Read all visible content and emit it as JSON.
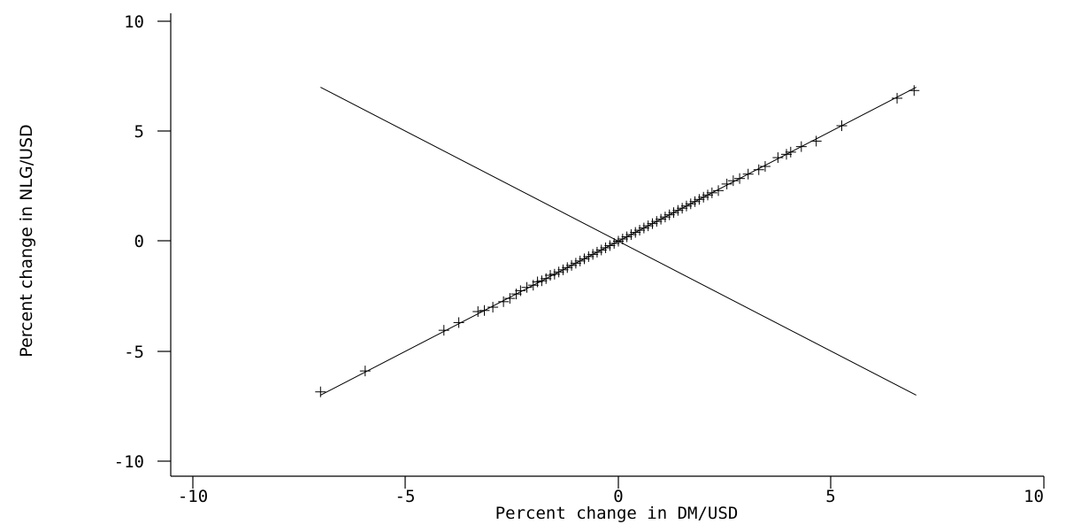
{
  "chart_data": {
    "type": "scatter",
    "xlabel": "Percent change in DM/USD",
    "ylabel": "Percent change in NLG/USD",
    "xlim": [
      -10,
      10
    ],
    "ylim": [
      -10,
      10
    ],
    "xticks": [
      -10,
      -5,
      0,
      5,
      10
    ],
    "yticks": [
      -10,
      -5,
      0,
      5,
      10
    ],
    "xtick_labels": [
      "-10",
      "-5",
      "0",
      "5",
      "10"
    ],
    "ytick_labels": [
      "-10",
      "-5",
      "0",
      "5",
      "10"
    ],
    "grid": false,
    "marker": "plus",
    "points": [
      [
        -7.0,
        -6.85
      ],
      [
        -5.95,
        -5.9
      ],
      [
        -4.1,
        -4.05
      ],
      [
        -3.75,
        -3.7
      ],
      [
        -3.3,
        -3.2
      ],
      [
        -3.15,
        -3.15
      ],
      [
        -2.95,
        -3.0
      ],
      [
        -2.7,
        -2.75
      ],
      [
        -2.55,
        -2.6
      ],
      [
        -2.4,
        -2.4
      ],
      [
        -2.3,
        -2.25
      ],
      [
        -2.15,
        -2.1
      ],
      [
        -2.0,
        -2.0
      ],
      [
        -1.9,
        -1.85
      ],
      [
        -1.8,
        -1.8
      ],
      [
        -1.7,
        -1.7
      ],
      [
        -1.6,
        -1.55
      ],
      [
        -1.5,
        -1.5
      ],
      [
        -1.4,
        -1.4
      ],
      [
        -1.3,
        -1.3
      ],
      [
        -1.2,
        -1.2
      ],
      [
        -1.1,
        -1.1
      ],
      [
        -1.0,
        -1.0
      ],
      [
        -0.9,
        -0.9
      ],
      [
        -0.8,
        -0.8
      ],
      [
        -0.7,
        -0.7
      ],
      [
        -0.6,
        -0.6
      ],
      [
        -0.5,
        -0.5
      ],
      [
        -0.4,
        -0.4
      ],
      [
        -0.3,
        -0.3
      ],
      [
        -0.2,
        -0.2
      ],
      [
        -0.1,
        -0.1
      ],
      [
        0.0,
        0.0
      ],
      [
        0.1,
        0.1
      ],
      [
        0.2,
        0.2
      ],
      [
        0.3,
        0.3
      ],
      [
        0.4,
        0.4
      ],
      [
        0.5,
        0.5
      ],
      [
        0.6,
        0.6
      ],
      [
        0.7,
        0.7
      ],
      [
        0.8,
        0.8
      ],
      [
        0.9,
        0.9
      ],
      [
        1.0,
        1.0
      ],
      [
        1.1,
        1.1
      ],
      [
        1.2,
        1.2
      ],
      [
        1.3,
        1.3
      ],
      [
        1.4,
        1.4
      ],
      [
        1.5,
        1.5
      ],
      [
        1.6,
        1.6
      ],
      [
        1.7,
        1.7
      ],
      [
        1.8,
        1.8
      ],
      [
        1.9,
        1.9
      ],
      [
        2.0,
        2.0
      ],
      [
        2.1,
        2.1
      ],
      [
        2.2,
        2.2
      ],
      [
        2.35,
        2.3
      ],
      [
        2.55,
        2.6
      ],
      [
        2.7,
        2.75
      ],
      [
        2.85,
        2.85
      ],
      [
        3.05,
        3.05
      ],
      [
        3.3,
        3.25
      ],
      [
        3.45,
        3.4
      ],
      [
        3.75,
        3.8
      ],
      [
        3.95,
        3.95
      ],
      [
        4.05,
        4.05
      ],
      [
        4.3,
        4.3
      ],
      [
        4.65,
        4.55
      ],
      [
        5.25,
        5.25
      ],
      [
        6.55,
        6.5
      ],
      [
        6.95,
        6.85
      ]
    ],
    "lines": [
      {
        "x": [
          -7.0,
          7.0
        ],
        "y": [
          -7.0,
          7.0
        ]
      },
      {
        "x": [
          -7.0,
          7.0
        ],
        "y": [
          7.0,
          -7.0
        ]
      }
    ]
  }
}
